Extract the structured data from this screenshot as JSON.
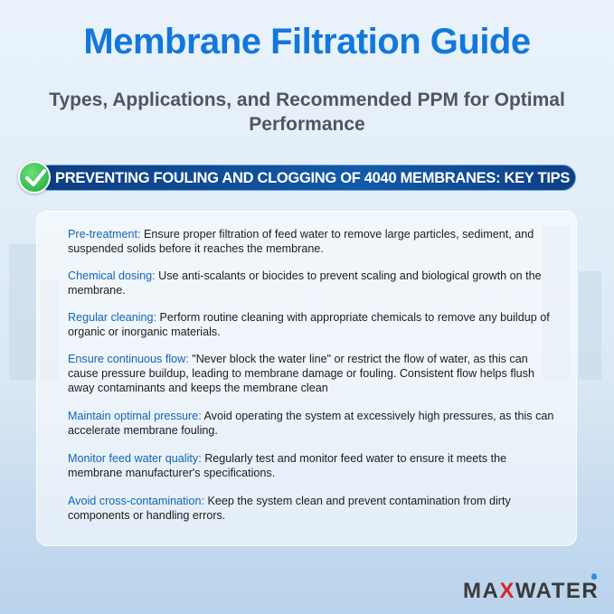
{
  "title": "Membrane Filtration Guide",
  "subtitle": "Types, Applications, and Recommended PPM for Optimal Performance",
  "banner": {
    "icon": "check-circle-icon",
    "text": "PREVENTING FOULING AND CLOGGING OF 4040 MEMBRANES: KEY TIPS"
  },
  "tips": [
    {
      "label": "Pre-treatment:",
      "text": " Ensure proper filtration of feed water to remove large particles, sediment, and suspended solids before it reaches the membrane."
    },
    {
      "label": "Chemical dosing:",
      "text": " Use anti-scalants or biocides to prevent scaling and biological growth on the membrane."
    },
    {
      "label": "Regular cleaning:",
      "text": " Perform routine cleaning with appropriate chemicals to remove any buildup of organic or inorganic materials."
    },
    {
      "label": "Ensure continuous flow:",
      "text": " \"Never block the water line\" or restrict the flow of water, as this can cause pressure buildup, leading to membrane damage or fouling. Consistent flow helps flush away contaminants and keeps the membrane clean"
    },
    {
      "label": "Maintain optimal pressure:",
      "text": " Avoid operating the system at excessively high pressures, as this can accelerate membrane fouling."
    },
    {
      "label": "Monitor feed water quality:",
      "text": " Regularly test and monitor feed water to ensure it meets the membrane manufacturer's specifications."
    },
    {
      "label": "Avoid cross-contamination:",
      "text": " Keep the system clean and prevent contamination from dirty components or handling errors."
    }
  ],
  "logo": {
    "text": "MAXWATER",
    "colors": {
      "main": "#3a3a3a",
      "accent": "#d8262b",
      "drop": "#2e8be0"
    }
  },
  "colors": {
    "title": "#1477dc",
    "banner": "#135aa8",
    "label": "#1464b4"
  }
}
